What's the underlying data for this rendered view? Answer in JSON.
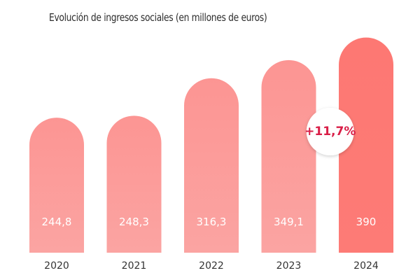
{
  "chart_data": {
    "type": "bar",
    "title": "Evolución de ingresos sociales (en millones de euros)",
    "categories": [
      "2020",
      "2021",
      "2022",
      "2023",
      "2024"
    ],
    "values": [
      244.8,
      248.3,
      316.3,
      349.1,
      390
    ],
    "value_labels": [
      "244,8",
      "248,3",
      "316,3",
      "349,1",
      "390"
    ],
    "annotation": "+11,7%",
    "colors": {
      "bar": "#fb9c9a",
      "highlight_bar": "#fd7a76",
      "annotation_text": "#d91e47",
      "annotation_background": "#ffffff"
    }
  }
}
